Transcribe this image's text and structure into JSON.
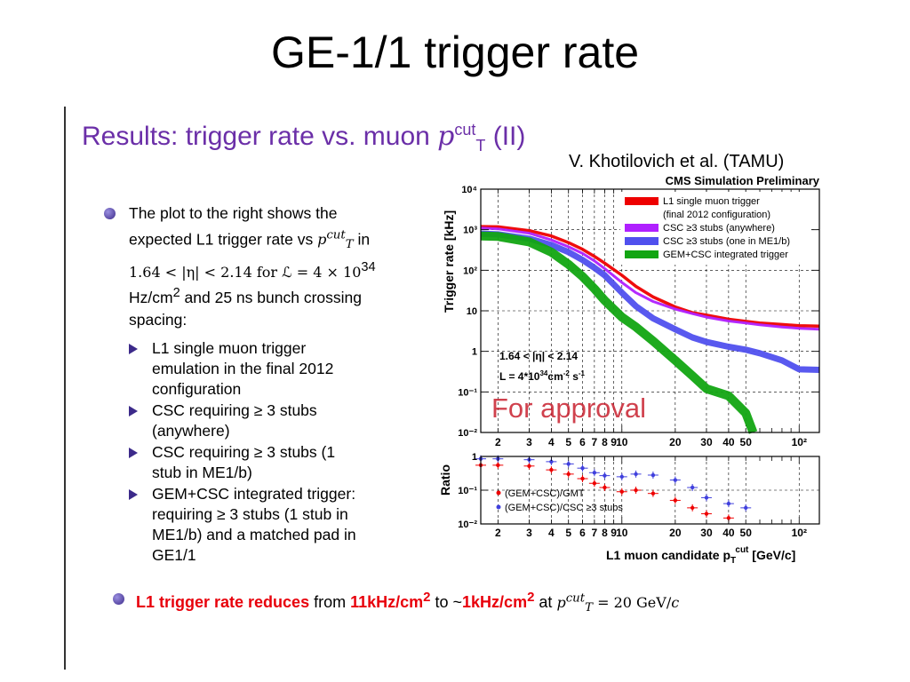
{
  "slide_title": "GE-1/1 trigger rate",
  "subtitle_prefix": "Results: trigger rate vs. muon ",
  "subtitle_p": "p",
  "subtitle_sup": "cut",
  "subtitle_sub": "T",
  "subtitle_suffix": " (II)",
  "author": "V.  Khotilovich et al. (TAMU)",
  "bullets": {
    "main": {
      "line1": "The plot to the right shows the",
      "line2a": "expected L1 trigger rate vs ",
      "line2b": " in",
      "line3": "1.64 < |η| < 2.14 for ℒ = 4 × 10",
      "line3_sup": "34",
      "line4a": "Hz/cm",
      "line4_sup": "2",
      "line4b": " and 25 ns bunch crossing",
      "line5": "spacing:"
    },
    "subs": [
      {
        "l1": "L1 single muon trigger",
        "l2": "emulation in the final 2012",
        "l3": "configuration"
      },
      {
        "l1": "CSC requiring ≥ 3 stubs",
        "l2": "(anywhere)"
      },
      {
        "l1": "CSC requiring ≥ 3 stubs (1",
        "l2": "stub in ME1/b)"
      },
      {
        "l1": "GEM+CSC integrated trigger:",
        "l2": "requiring ≥ 3 stubs (1 stub in",
        "l3": "ME1/b) and a matched pad in",
        "l4": "GE1/1"
      }
    ]
  },
  "conclusion": {
    "part1": "L1 trigger rate reduces",
    "part2": " from ",
    "part3": "11kHz/cm",
    "part3_sup": "2",
    "part4": " to ~",
    "part5": "1kHz/cm",
    "part5_sup": "2",
    "part6": " at ",
    "part7": " = 20 GeV/",
    "part8": "c"
  },
  "chart_data": {
    "type": "line",
    "title": "CMS Simulation Preliminary",
    "ylabel": "Trigger rate [kHz]",
    "ratio_ylabel": "Ratio",
    "xlabel": "L1 muon candidate p",
    "xlabel_sup": "cut",
    "xlabel_sub": "T",
    "xlabel_unit": " [GeV/c]",
    "x_scale": "log",
    "y_scale": "log",
    "xlim": [
      1.6,
      130
    ],
    "ylim": [
      0.01,
      10000
    ],
    "ratio_ylim": [
      0.01,
      1
    ],
    "x_tick_labels": [
      "2",
      "3",
      "4",
      "5",
      "6",
      "7",
      "8",
      "9",
      "10",
      "20",
      "30",
      "40",
      "50",
      "10²"
    ],
    "y_tick_labels": [
      "10⁴",
      "10³",
      "10²",
      "10",
      "1",
      "10⁻¹",
      "10⁻²"
    ],
    "ratio_tick_labels": [
      "1",
      "10⁻¹",
      "10⁻²"
    ],
    "annotations": {
      "eta": "1.64 < |η| < 2.14",
      "lumi_a": "L = 4*10",
      "lumi_sup1": "34",
      "lumi_b": "cm",
      "lumi_sup2": "-2",
      "lumi_c": " s",
      "lumi_sup3": "-1",
      "stamp": "For approval"
    },
    "legend_position": "top-right",
    "series": [
      {
        "name": "L1 single muon trigger",
        "name2": "(final 2012 configuration)",
        "color": "#ee0000",
        "x": [
          1.6,
          2,
          3,
          4,
          5,
          6,
          7,
          8,
          10,
          12,
          15,
          20,
          25,
          30,
          40,
          50,
          60,
          80,
          100,
          130
        ],
        "y": [
          1200,
          1180,
          950,
          700,
          480,
          330,
          220,
          150,
          75,
          40,
          22,
          12.5,
          9,
          7.8,
          6.2,
          5.5,
          5,
          4.6,
          4.3,
          4.2
        ]
      },
      {
        "name": "CSC ≥3 stubs (anywhere)",
        "color": "#b020ff",
        "x": [
          1.6,
          2,
          3,
          4,
          5,
          6,
          7,
          8,
          10,
          12,
          15,
          20,
          25,
          30,
          40,
          50,
          60,
          80,
          100,
          130
        ],
        "y": [
          1100,
          1050,
          820,
          560,
          380,
          260,
          170,
          110,
          50,
          28,
          17,
          11,
          8.5,
          7,
          5.6,
          5,
          4.5,
          4,
          3.7,
          3.5
        ]
      },
      {
        "name": "CSC ≥3 stubs (one in ME1/b)",
        "color": "#5050ee",
        "x": [
          1.6,
          2,
          3,
          4,
          5,
          6,
          7,
          8,
          10,
          12,
          15,
          20,
          25,
          30,
          40,
          50,
          60,
          80,
          100,
          130
        ],
        "y": [
          800,
          770,
          600,
          420,
          280,
          180,
          115,
          75,
          28,
          13,
          6.5,
          3.5,
          2.2,
          1.7,
          1.3,
          1.1,
          0.9,
          0.6,
          0.36,
          0.35
        ]
      },
      {
        "name": "GEM+CSC integrated trigger",
        "color": "#12a512",
        "x": [
          1.6,
          2,
          3,
          4,
          5,
          6,
          7,
          8,
          10,
          12,
          15,
          20,
          25,
          30,
          40,
          50,
          55
        ],
        "y": [
          700,
          680,
          500,
          280,
          140,
          70,
          35,
          18,
          7,
          4,
          1.8,
          0.6,
          0.25,
          0.12,
          0.08,
          0.03,
          0.01
        ]
      }
    ],
    "ratio_series": [
      {
        "name": "(GEM+CSC)/GMT",
        "color": "#ee0000",
        "x": [
          1.6,
          2,
          3,
          4,
          5,
          6,
          7,
          8,
          10,
          12,
          15,
          20,
          25,
          30,
          40
        ],
        "y": [
          0.55,
          0.55,
          0.52,
          0.4,
          0.3,
          0.22,
          0.16,
          0.12,
          0.09,
          0.1,
          0.08,
          0.05,
          0.03,
          0.02,
          0.015
        ]
      },
      {
        "name": "(GEM+CSC)/CSC ≥3 stubs",
        "color": "#4040dd",
        "x": [
          1.6,
          2,
          3,
          4,
          5,
          6,
          7,
          8,
          10,
          12,
          15,
          20,
          25,
          30,
          40,
          50
        ],
        "y": [
          0.85,
          0.85,
          0.8,
          0.7,
          0.6,
          0.45,
          0.33,
          0.27,
          0.25,
          0.3,
          0.28,
          0.2,
          0.12,
          0.06,
          0.04,
          0.03
        ]
      }
    ]
  }
}
